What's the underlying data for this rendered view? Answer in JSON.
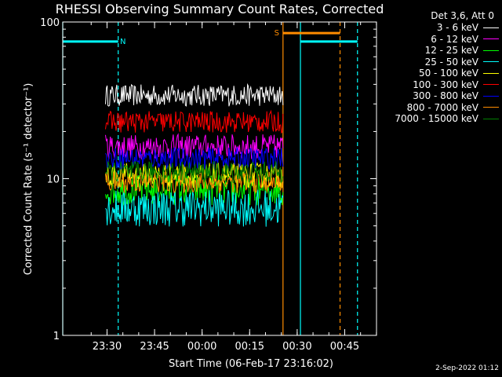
{
  "chart_data": {
    "type": "line",
    "title": "RHESSI Observing Summary Count Rates, Corrected",
    "xlabel": "Start Time (06-Feb-17 23:16:02)",
    "ylabel": "Corrected Count Rate (s⁻¹ detector⁻¹)",
    "yscale": "log",
    "ylim": [
      1,
      100
    ],
    "xlim_minutes_from_2316_02": [
      0,
      99
    ],
    "x_ticks": [
      "23:30",
      "23:45",
      "00:00",
      "00:15",
      "00:30",
      "00:45"
    ],
    "x_tick_minutes": [
      13.97,
      28.97,
      43.97,
      58.97,
      73.97,
      88.97
    ],
    "y_ticks": [
      "1",
      "10",
      "100"
    ],
    "y_tick_values": [
      1,
      10,
      100
    ],
    "grid": false,
    "legend_title": "Det 3,6, Att 0",
    "legend_position": "top-right",
    "data_window_minutes": [
      13.5,
      69.5
    ],
    "series": [
      {
        "name": "3 - 6 keV",
        "color": "#ffffff",
        "level": 34,
        "noise": 0.07
      },
      {
        "name": "6 - 12 keV",
        "color": "#ff00ff",
        "level": 16,
        "noise": 0.08
      },
      {
        "name": "12 - 25 keV",
        "color": "#00ff00",
        "level": 8.5,
        "noise": 0.1
      },
      {
        "name": "25 - 50 keV",
        "color": "#00ffff",
        "level": 6.5,
        "noise": 0.12
      },
      {
        "name": "50 - 100 keV",
        "color": "#ffff00",
        "level": 10.5,
        "noise": 0.08
      },
      {
        "name": "100 - 300 keV",
        "color": "#ff0000",
        "level": 23,
        "noise": 0.07
      },
      {
        "name": "300 - 800 keV",
        "color": "#0000ff",
        "level": 13.5,
        "noise": 0.07
      },
      {
        "name": "800 - 7000 keV",
        "color": "#ff8c00",
        "level": 9.5,
        "noise": 0.07
      },
      {
        "name": "7000 - 15000 keV",
        "color": "#008000",
        "level": 11,
        "noise": 0.07
      }
    ],
    "annotations": [
      {
        "label": "N",
        "color": "#00ffff",
        "value": 75,
        "x_range_minutes": [
          0,
          17.5
        ]
      },
      {
        "label": "S",
        "color": "#ff8c00",
        "value": 85,
        "x_range_minutes": [
          69.5,
          87.5
        ]
      },
      {
        "label": "",
        "color": "#00ffff",
        "value": 75,
        "x_range_minutes": [
          75,
          93
        ]
      }
    ],
    "vertical_markers": [
      {
        "color": "#00ffff",
        "minute": 0,
        "style": "solid"
      },
      {
        "color": "#00ffff",
        "minute": 17.5,
        "style": "dashed"
      },
      {
        "color": "#ff8c00",
        "minute": 69.5,
        "style": "solid"
      },
      {
        "color": "#00ffff",
        "minute": 75,
        "style": "solid"
      },
      {
        "color": "#ff8c00",
        "minute": 87.5,
        "style": "dashed"
      },
      {
        "color": "#00ffff",
        "minute": 93,
        "style": "dashed"
      }
    ]
  },
  "footer": {
    "timestamp": "2-Sep-2022 01:12"
  }
}
